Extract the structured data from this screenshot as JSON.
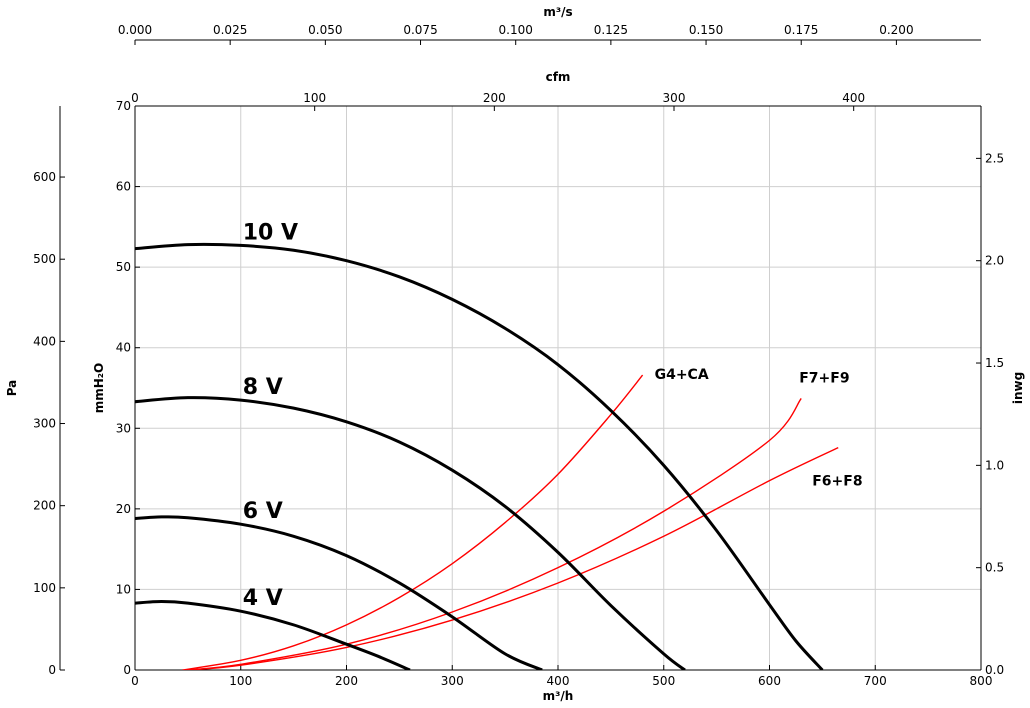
{
  "chart_data": {
    "type": "line",
    "title": "",
    "xlabel": "m³/h",
    "xlim": [
      0,
      800
    ],
    "x_ticks": [
      "0",
      "100",
      "200",
      "300",
      "400",
      "500",
      "600",
      "700",
      "800"
    ],
    "ylabel": "mmH₂O",
    "ylim": [
      0,
      70
    ],
    "y_ticks": [
      "0",
      "10",
      "20",
      "30",
      "40",
      "50",
      "60",
      "70"
    ],
    "grid": true,
    "secondary_axes": {
      "top_m3s": {
        "label": "m³/s",
        "ticks": [
          "0.000",
          "0.025",
          "0.050",
          "0.075",
          "0.100",
          "0.125",
          "0.150",
          "0.175",
          "0.200"
        ]
      },
      "top_cfm": {
        "label": "cfm",
        "ticks": [
          "0",
          "100",
          "200",
          "300",
          "400"
        ]
      },
      "left_pa": {
        "label": "Pa",
        "ticks": [
          "0",
          "100",
          "200",
          "300",
          "400",
          "500",
          "600"
        ]
      },
      "right_inwg": {
        "label": "inwg",
        "ticks": [
          "0.0",
          "0.5",
          "1.0",
          "1.5",
          "2.0",
          "2.5"
        ]
      }
    },
    "fan_curves": [
      {
        "name": "10 V",
        "color": "#000000",
        "x": [
          0,
          50,
          100,
          150,
          200,
          250,
          300,
          350,
          400,
          450,
          500,
          550,
          600,
          625,
          650
        ],
        "y": [
          52.3,
          52.8,
          52.7,
          52.1,
          50.8,
          48.8,
          46.0,
          42.4,
          37.9,
          32.2,
          25.4,
          17.3,
          8.1,
          3.6,
          0
        ]
      },
      {
        "name": "8 V",
        "color": "#000000",
        "x": [
          0,
          50,
          100,
          150,
          200,
          250,
          300,
          350,
          400,
          450,
          500,
          520
        ],
        "y": [
          33.3,
          33.8,
          33.5,
          32.5,
          30.8,
          28.3,
          24.8,
          20.3,
          14.6,
          8.0,
          2.0,
          0
        ]
      },
      {
        "name": "6 V",
        "color": "#000000",
        "x": [
          0,
          25,
          50,
          100,
          150,
          200,
          250,
          300,
          350,
          385
        ],
        "y": [
          18.8,
          19.0,
          18.9,
          18.1,
          16.6,
          14.2,
          10.8,
          6.6,
          2.0,
          0
        ]
      },
      {
        "name": "4 V",
        "color": "#000000",
        "x": [
          0,
          25,
          50,
          100,
          150,
          200,
          230,
          260
        ],
        "y": [
          8.3,
          8.5,
          8.3,
          7.3,
          5.6,
          3.2,
          1.7,
          0
        ]
      }
    ],
    "system_curves": [
      {
        "name": "G4+CA",
        "color": "#ff0000",
        "x": [
          45,
          100,
          150,
          200,
          250,
          300,
          350,
          400,
          450,
          480
        ],
        "y": [
          0,
          1.2,
          3.0,
          5.6,
          9.0,
          13.2,
          18.3,
          24.3,
          31.7,
          36.6
        ]
      },
      {
        "name": "F7+F9",
        "color": "#ff0000",
        "x": [
          50,
          100,
          200,
          300,
          400,
          500,
          600,
          630
        ],
        "y": [
          0,
          0.7,
          3.2,
          7.2,
          12.7,
          19.7,
          28.5,
          33.7
        ]
      },
      {
        "name": "F6+F8",
        "color": "#ff0000",
        "x": [
          50,
          100,
          200,
          300,
          400,
          500,
          600,
          665
        ],
        "y": [
          0,
          0.6,
          2.8,
          6.2,
          10.8,
          16.6,
          23.5,
          27.6
        ]
      }
    ]
  }
}
